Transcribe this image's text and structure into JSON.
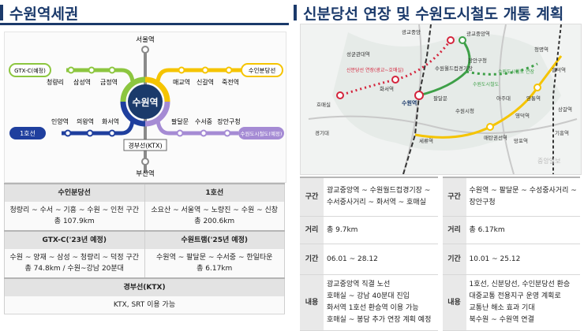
{
  "left": {
    "title": "수원역세권",
    "map": {
      "center": "수원역",
      "station_top": "서울역",
      "station_bottom": "부산역",
      "line_labels": {
        "gtx_c": "GTX-C(예정)",
        "suin_bundang": "수인분당선",
        "line1": "1호선",
        "suwon_tram": "수원도시철도(예정)",
        "gyeongbu": "경부선(KTX)"
      },
      "upper_left_stations": [
        "청량리",
        "삼성역",
        "금정역"
      ],
      "upper_right_stations": [
        "매교역",
        "신갈역",
        "죽전역"
      ],
      "lower_left_stations": [
        "인양역",
        "의왕역",
        "화서역"
      ],
      "lower_right_stations": [
        "팔달문",
        "수서중",
        "장안구청"
      ]
    },
    "table": {
      "rows": [
        {
          "h1": "수인분당선",
          "h2": "1호선",
          "b1": [
            "청량리 ~ 수서 ~ 기흥 ~ 수원 ~ 인천 구간",
            "총 107.9km"
          ],
          "b2": [
            "소요산 ~ 서울역 ~ 노량진 ~ 수원 ~ 신창",
            "총 200.6km"
          ]
        },
        {
          "h1": "GTX-C('23년 예정)",
          "h2": "수원트램('25년 예정)",
          "b1": [
            "수원 ~ 양재 ~ 삼성 ~ 청량리 ~ 덕정 구간",
            "총 74.8km / 수원~강남 20분대"
          ],
          "b2": [
            "수원역 ~ 팔달문 ~ 수서중 ~ 한일타운",
            "총 6.17km"
          ]
        }
      ],
      "last_header": "경부선(KTX)",
      "last_body": "KTX, SRT 이용 가능"
    }
  },
  "right": {
    "title": "신분당선 연장 및 수원도시철도 개통 계획",
    "map": {
      "labels": {
        "gwanggyo": "광교중앙역",
        "sinbundang_ext": "신분당선 연장(광교~호매실)",
        "suwon_station": "수원역",
        "hwaseo": "화서역",
        "homaesil": "호매실",
        "jangan": "장안구청",
        "paldal": "팔달문",
        "suwon_city_hall": "수원시청",
        "ajou": "아주대",
        "jeonggil": "정자역",
        "suwon_rail": "수원도시철도",
        "suwon_rail_ext": "수원도시철도 연장",
        "seryu": "세류역",
        "mangpo": "망포역",
        "yeongtong": "영통역",
        "maetan": "매탄권선역",
        "gyeonggi_univ": "경기대",
        "sungkyunkwan": "성균관대역",
        "suwon_stadium": "수원월드컵경기장",
        "gwanggyo_jungang": "광교중앙",
        "cheongmyeong": "청명역",
        "heungdeok": "흥덕역",
        "yeongdeok": "영덕역",
        "sangal": "상갈역",
        "giheung": "기흥역"
      },
      "watermark": "중앙일보"
    },
    "table": [
      {
        "k": "구간",
        "v1": "광교중앙역 ~ 수원월드컵경기장 ~ 수서중사거리 ~ 화서역 ~ 호매실",
        "v2": "수원역 ~ 팔달문 ~ 수성중사거리 ~ 장안구청"
      },
      {
        "k": "거리",
        "v1": "총 9.7km",
        "v2": "총 6.17km"
      },
      {
        "k": "기간",
        "v1": "06.01 ~ 28.12",
        "v2": "10.01 ~ 25.12"
      },
      {
        "k": "내용",
        "v1": [
          "광교중앙역 직결 노선",
          "호매실 ~ 강남 40분대 진입",
          "화서역 1호선 환승역 이용 가능",
          "호매실 ~ 봉담 추가 연장 계획 예정"
        ],
        "v2": [
          "1호선, 신분당선, 수인분당선 환승",
          "대중교통 전용지구 운영 계획로",
          "교통난 해소 효과 기대",
          "북수원 ~ 수원역 연결"
        ]
      }
    ]
  },
  "colors": {
    "gtx": "#8cc63f",
    "suin": "#f5c400",
    "line1": "#1f3f9e",
    "tram": "#a58bd4",
    "gyeongbu": "#8a8a8a",
    "navy": "#1b3a6b",
    "sinbundang": "#d4243c"
  }
}
